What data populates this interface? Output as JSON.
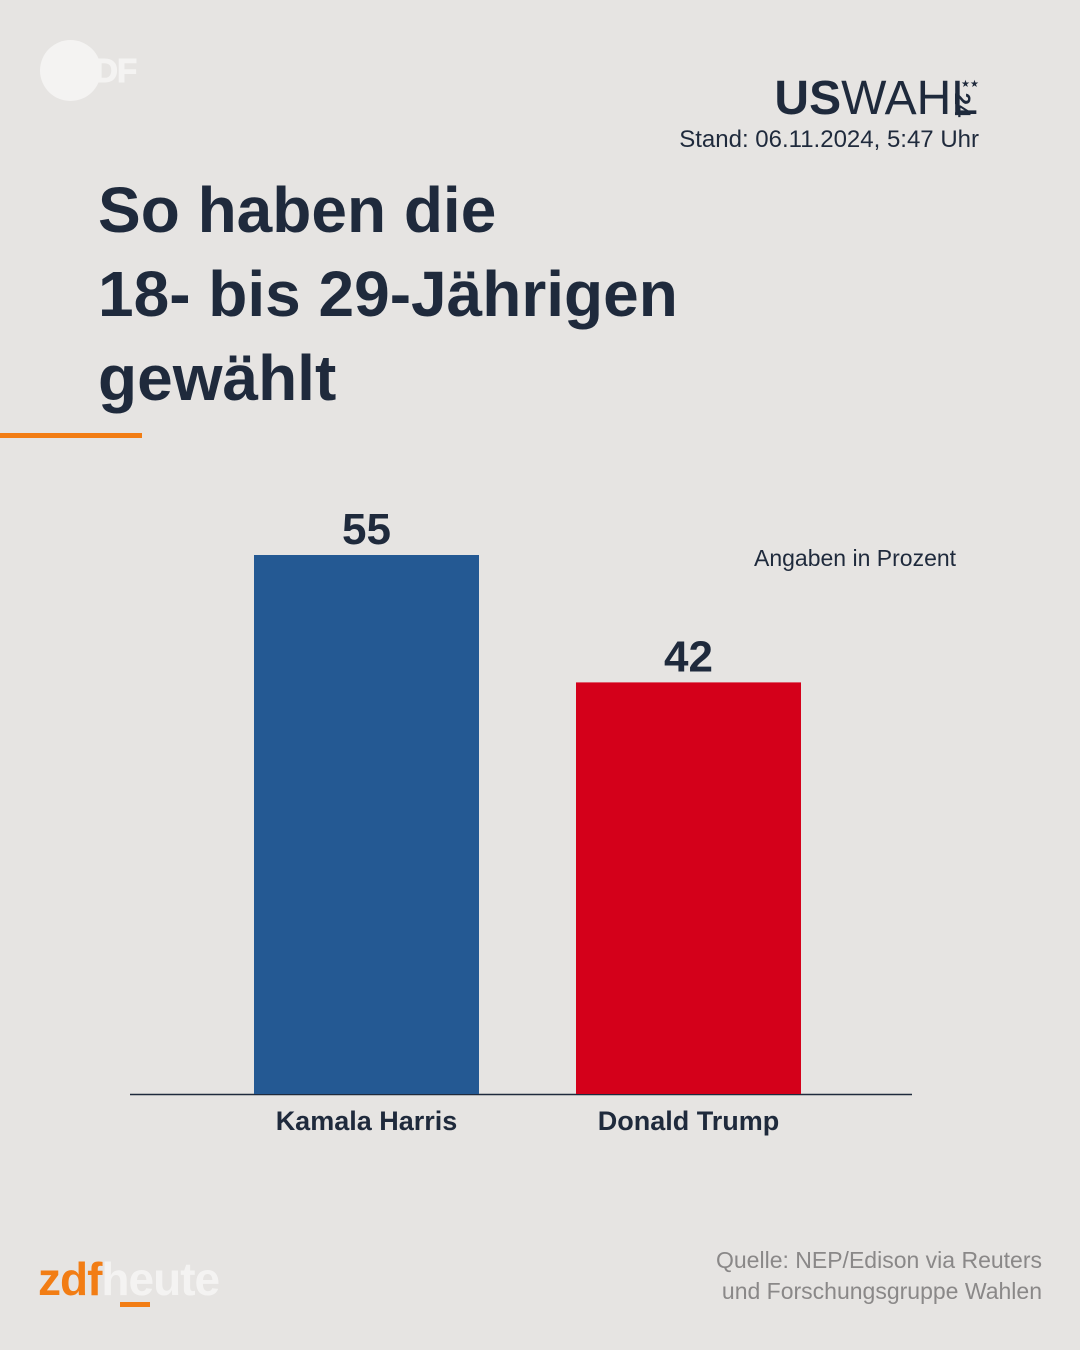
{
  "logo": {
    "zdf_text": "ZDF",
    "icon": "zdf-logo-icon"
  },
  "branding": {
    "uswahl_bold": "US",
    "uswahl_light": "WAHL",
    "uswahl_year": "24",
    "uswahl_stars": "★★"
  },
  "header": {
    "stand": "Stand: 06.11.2024, 5:47 Uhr",
    "title_lines": [
      "So haben die",
      "18- bis 29-Jährigen",
      "gewählt"
    ]
  },
  "chart_data": {
    "type": "bar",
    "unit_note": "Angaben in Prozent",
    "categories": [
      "Kamala Harris",
      "Donald Trump"
    ],
    "values": [
      55,
      42
    ],
    "colors": [
      "#245993",
      "#d4001a"
    ],
    "ylim": [
      0,
      55
    ]
  },
  "footer": {
    "source_lines": [
      "Quelle: NEP/Edison via Reuters",
      "und Forschungsgruppe Wahlen"
    ],
    "brand_zdf": "zdf",
    "brand_heute": "heute"
  },
  "colors": {
    "background": "#e6e4e2",
    "text": "#1f2a3c",
    "accent": "#f27d14",
    "source_text": "#8a8888"
  }
}
